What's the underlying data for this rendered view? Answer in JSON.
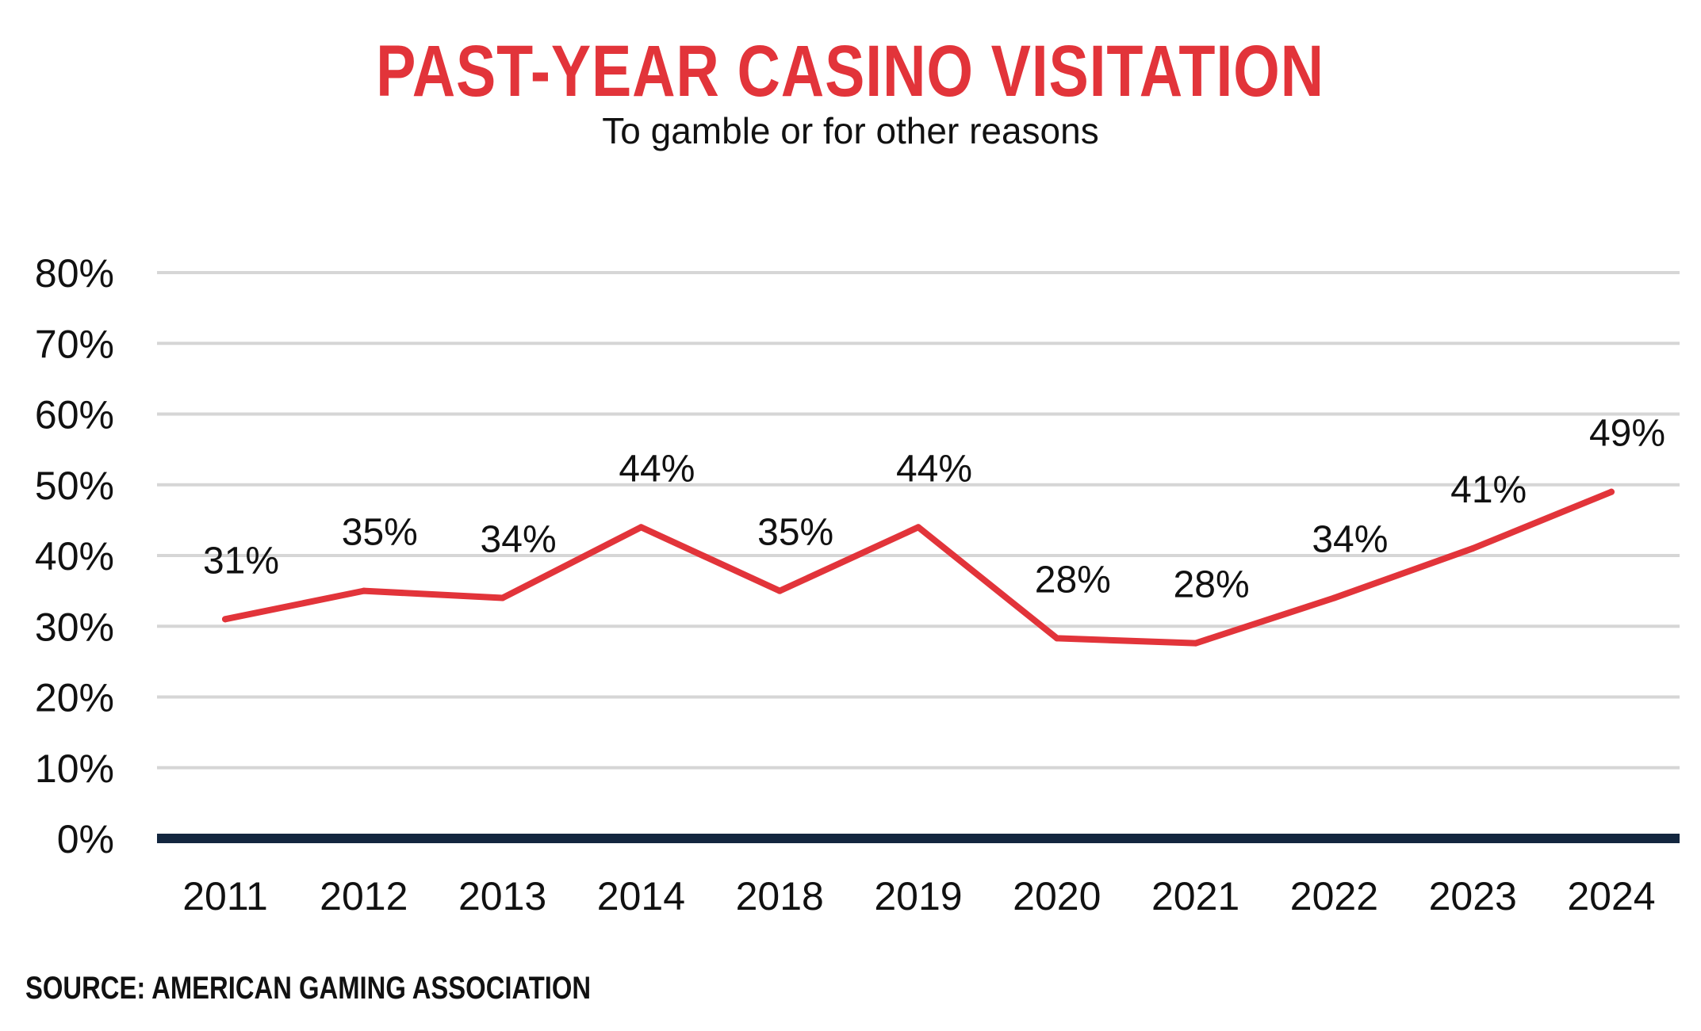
{
  "title": "PAST-YEAR CASINO VISITATION",
  "subtitle": "To gamble or for other reasons",
  "source": "SOURCE: AMERICAN GAMING ASSOCIATION",
  "colors": {
    "line": "#e2343a",
    "title": "#e2343a",
    "baseline": "#13263f",
    "grid": "#d6d6d6"
  },
  "chart_data": {
    "type": "line",
    "title": "PAST-YEAR CASINO VISITATION",
    "subtitle": "To gamble or for other reasons",
    "categories": [
      "2011",
      "2012",
      "2013",
      "2014",
      "2018",
      "2019",
      "2020",
      "2021",
      "2022",
      "2023",
      "2024"
    ],
    "series": [
      {
        "values": [
          31,
          35,
          34,
          44,
          35,
          44,
          28.3,
          27.6,
          34,
          41,
          49
        ],
        "labels": [
          "31%",
          "35%",
          "34%",
          "44%",
          "35%",
          "44%",
          "28%",
          "28%",
          "34%",
          "41%",
          "49%"
        ]
      }
    ],
    "ylim": [
      0,
      80
    ],
    "yticks": [
      "0%",
      "10%",
      "20%",
      "30%",
      "40%",
      "50%",
      "60%",
      "70%",
      "80%"
    ],
    "grid": true,
    "legend": "none"
  }
}
